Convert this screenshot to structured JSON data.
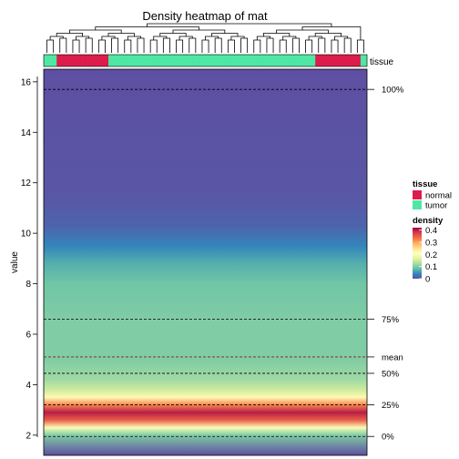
{
  "chart_data": {
    "type": "heatmap",
    "title": "Density heatmap of mat",
    "ylabel": "value",
    "ylim": [
      1.2,
      16.5
    ],
    "y_ticks": [
      2,
      4,
      6,
      8,
      10,
      12,
      14,
      16
    ],
    "annotation_name": "tissue",
    "columns": {
      "count": 50,
      "tissue": [
        "tumor",
        "tumor",
        "normal",
        "normal",
        "normal",
        "normal",
        "normal",
        "normal",
        "normal",
        "normal",
        "tumor",
        "tumor",
        "tumor",
        "tumor",
        "tumor",
        "tumor",
        "tumor",
        "tumor",
        "tumor",
        "tumor",
        "tumor",
        "tumor",
        "tumor",
        "tumor",
        "tumor",
        "tumor",
        "tumor",
        "tumor",
        "tumor",
        "tumor",
        "tumor",
        "tumor",
        "tumor",
        "tumor",
        "tumor",
        "tumor",
        "tumor",
        "tumor",
        "tumor",
        "tumor",
        "tumor",
        "tumor",
        "normal",
        "normal",
        "normal",
        "normal",
        "normal",
        "normal",
        "normal",
        "tumor"
      ]
    },
    "density_profile": [
      {
        "value": 1.2,
        "density": 0.0
      },
      {
        "value": 2.0,
        "density": 0.1
      },
      {
        "value": 2.3,
        "density": 0.2
      },
      {
        "value": 2.6,
        "density": 0.35
      },
      {
        "value": 2.9,
        "density": 0.4
      },
      {
        "value": 3.2,
        "density": 0.32
      },
      {
        "value": 3.5,
        "density": 0.22
      },
      {
        "value": 3.8,
        "density": 0.15
      },
      {
        "value": 4.2,
        "density": 0.12
      },
      {
        "value": 5.0,
        "density": 0.1
      },
      {
        "value": 6.5,
        "density": 0.1
      },
      {
        "value": 8.0,
        "density": 0.09
      },
      {
        "value": 8.8,
        "density": 0.07
      },
      {
        "value": 9.5,
        "density": 0.04
      },
      {
        "value": 10.3,
        "density": 0.015
      },
      {
        "value": 11.5,
        "density": 0.005
      },
      {
        "value": 16.5,
        "density": 0.0
      }
    ],
    "quantiles": [
      {
        "label": "100%",
        "value": 15.7,
        "color": "#000000"
      },
      {
        "label": "75%",
        "value": 6.6,
        "color": "#000000"
      },
      {
        "label": "mean",
        "value": 5.1,
        "color": "#8b1a1a"
      },
      {
        "label": "50%",
        "value": 4.45,
        "color": "#000000"
      },
      {
        "label": "25%",
        "value": 3.2,
        "color": "#000000"
      },
      {
        "label": "0%",
        "value": 1.95,
        "color": "#000000"
      }
    ],
    "legend": {
      "tissue_title": "tissue",
      "tissue_items": [
        {
          "label": "normal",
          "color": "#dc1c4b"
        },
        {
          "label": "tumor",
          "color": "#4fe7a3"
        }
      ],
      "density_title": "density",
      "density_ticks": [
        {
          "label": "0.4",
          "value": 0.4
        },
        {
          "label": "0.3",
          "value": 0.3
        },
        {
          "label": "0.2",
          "value": 0.2
        },
        {
          "label": "0.1",
          "value": 0.1
        },
        {
          "label": "0",
          "value": 0.0
        }
      ],
      "density_range": [
        0,
        0.42
      ],
      "density_colors": [
        "#5e4fa2",
        "#3288bd",
        "#66c2a5",
        "#abdda4",
        "#e6f598",
        "#ffffbf",
        "#fee08b",
        "#fdae61",
        "#f46d43",
        "#d53e4f",
        "#9e0142"
      ]
    }
  }
}
